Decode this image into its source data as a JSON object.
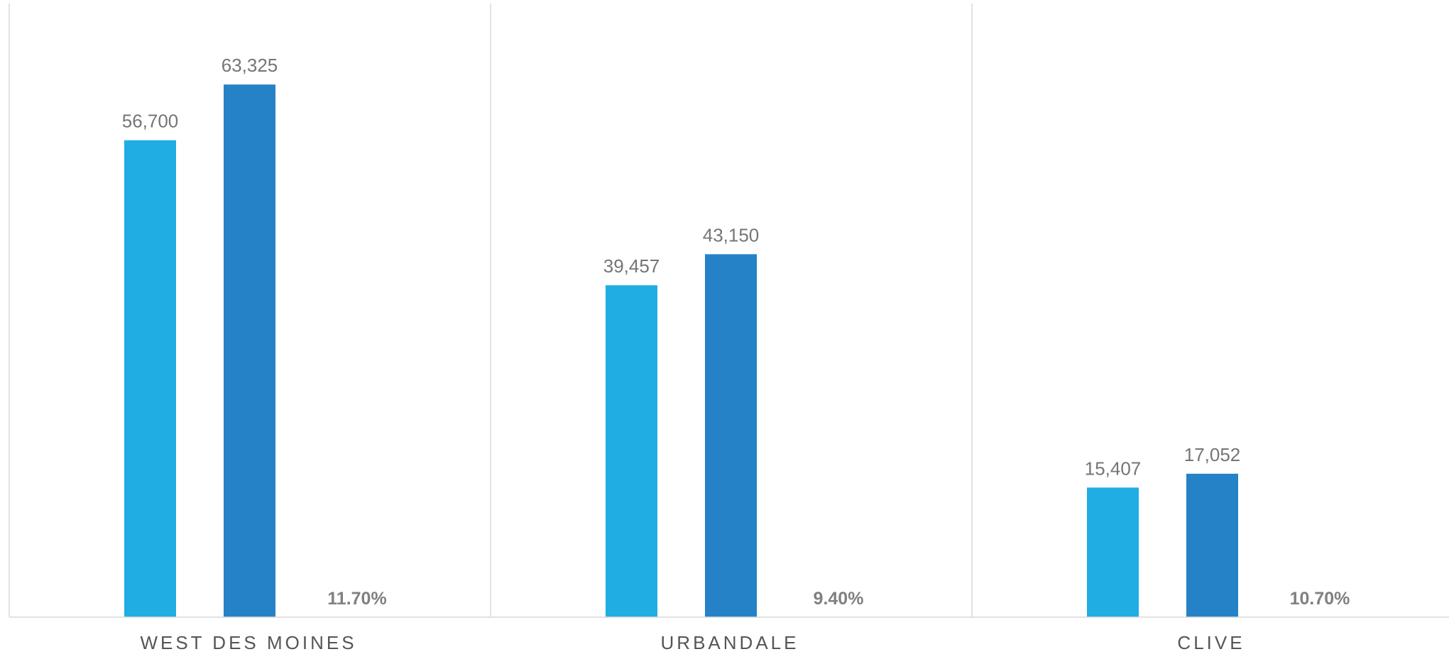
{
  "chart_data": {
    "type": "bar",
    "categories": [
      "WEST DES MOINES",
      "URBANDALE",
      "CLIVE"
    ],
    "series": [
      {
        "values": [
          56700,
          39457,
          15407
        ],
        "labels": [
          "56,700",
          "39,457",
          "15,407"
        ],
        "color": "#1FADE3"
      },
      {
        "values": [
          63325,
          43150,
          17052
        ],
        "labels": [
          "63,325",
          "43,150",
          "17,052"
        ],
        "color": "#2582C7"
      }
    ],
    "percent_change": [
      0.117,
      0.094,
      0.107
    ],
    "percent_labels": [
      "11.70%",
      "9.40%",
      "10.70%"
    ],
    "ylim": [
      0,
      70000
    ],
    "grid": false,
    "separators": true,
    "title": "",
    "xlabel": "",
    "ylabel": ""
  }
}
